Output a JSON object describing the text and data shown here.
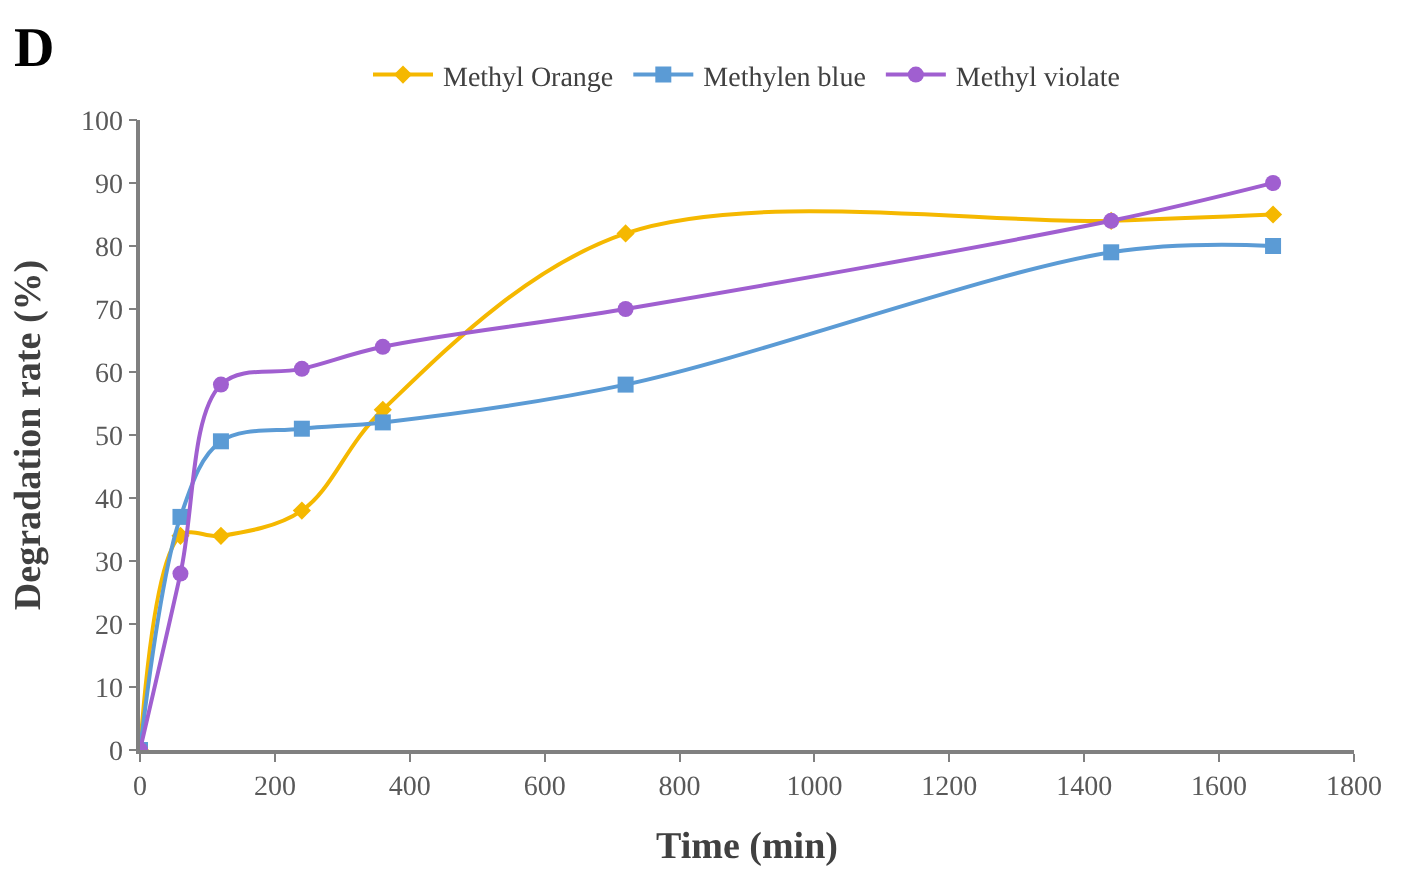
{
  "chart_data": {
    "type": "line",
    "title": "D",
    "xlabel": "Time (min)",
    "ylabel": "Degradation rate (%)",
    "x": [
      0,
      60,
      120,
      240,
      360,
      720,
      1440,
      1680
    ],
    "series": [
      {
        "name": "Methyl Orange",
        "color": "#f5b800",
        "marker": "diamond",
        "values": [
          0,
          34,
          34,
          38,
          54,
          82,
          84,
          85
        ]
      },
      {
        "name": "Methylen blue",
        "color": "#5b9bd5",
        "marker": "square",
        "values": [
          0,
          37,
          49,
          51,
          52,
          58,
          79,
          80
        ]
      },
      {
        "name": "Methyl violate",
        "color": "#a05fd0",
        "marker": "circle",
        "values": [
          0,
          28,
          58,
          60.5,
          64,
          70,
          84,
          90
        ]
      }
    ],
    "xlim": [
      0,
      1800
    ],
    "xticks": [
      0,
      200,
      400,
      600,
      800,
      1000,
      1200,
      1400,
      1600,
      1800
    ],
    "ylim": [
      0,
      100
    ],
    "yticks": [
      0,
      10,
      20,
      30,
      40,
      50,
      60,
      70,
      80,
      90,
      100
    ],
    "legend": "top",
    "line_style": "solid"
  }
}
